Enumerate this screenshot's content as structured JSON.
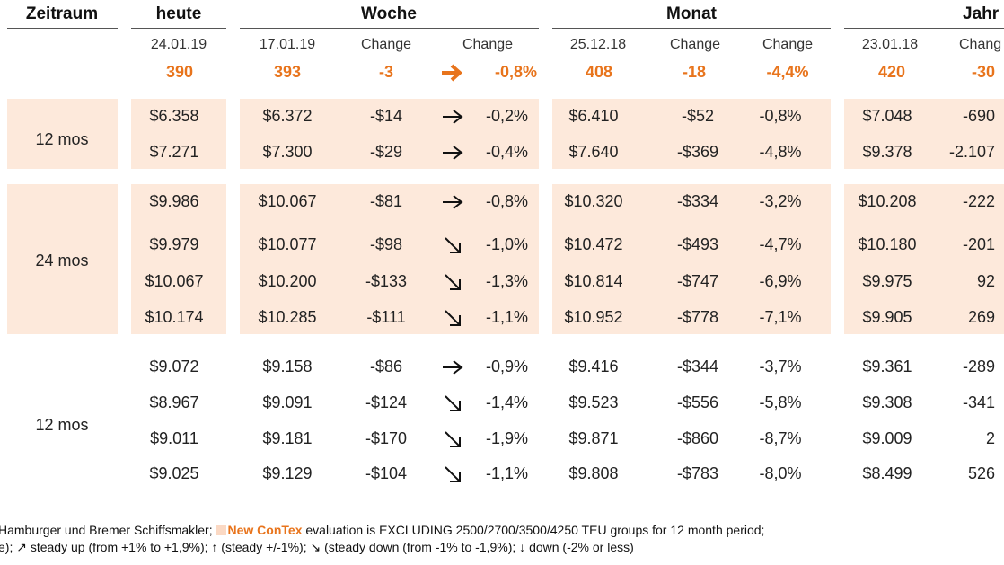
{
  "headers": {
    "zeitraum": "Zeitraum",
    "heute": "heute",
    "woche": "Woche",
    "monat": "Monat",
    "jahr": "Jahr"
  },
  "subheaders": {
    "heute_date": "24.01.19",
    "woche_date": "17.01.19",
    "woche_change1": "Change",
    "woche_change2": "Change",
    "monat_date": "25.12.18",
    "monat_change1": "Change",
    "monat_change2": "Change",
    "jahr_date": "23.01.18",
    "jahr_change1": "Chang"
  },
  "index_row": {
    "heute": "390",
    "woche": "393",
    "woche_change": "-3",
    "woche_pct": "-0,8%",
    "woche_arrow": "right-arrow-icon",
    "monat": "408",
    "monat_change": "-18",
    "monat_pct": "-4,4%",
    "jahr": "420",
    "jahr_change": "-30"
  },
  "groups": [
    {
      "label": "12 mos"
    },
    {
      "label": "24 mos"
    },
    {
      "label": "12 mos"
    }
  ],
  "rows": [
    {
      "heute": "$6.358",
      "woche": "$6.372",
      "w_chg": "-$14",
      "w_arrow": "right",
      "w_pct": "-0,2%",
      "monat": "$6.410",
      "m_chg": "-$52",
      "m_pct": "-0,8%",
      "jahr": "$7.048",
      "j_chg": "-690"
    },
    {
      "heute": "$7.271",
      "woche": "$7.300",
      "w_chg": "-$29",
      "w_arrow": "right",
      "w_pct": "-0,4%",
      "monat": "$7.640",
      "m_chg": "-$369",
      "m_pct": "-4,8%",
      "jahr": "$9.378",
      "j_chg": "-2.107"
    },
    {
      "heute": "$9.986",
      "woche": "$10.067",
      "w_chg": "-$81",
      "w_arrow": "right",
      "w_pct": "-0,8%",
      "monat": "$10.320",
      "m_chg": "-$334",
      "m_pct": "-3,2%",
      "jahr": "$10.208",
      "j_chg": "-222"
    },
    {
      "heute": "$9.979",
      "woche": "$10.077",
      "w_chg": "-$98",
      "w_arrow": "down-right",
      "w_pct": "-1,0%",
      "monat": "$10.472",
      "m_chg": "-$493",
      "m_pct": "-4,7%",
      "jahr": "$10.180",
      "j_chg": "-201"
    },
    {
      "heute": "$10.067",
      "woche": "$10.200",
      "w_chg": "-$133",
      "w_arrow": "down-right",
      "w_pct": "-1,3%",
      "monat": "$10.814",
      "m_chg": "-$747",
      "m_pct": "-6,9%",
      "jahr": "$9.975",
      "j_chg": "92"
    },
    {
      "heute": "$10.174",
      "woche": "$10.285",
      "w_chg": "-$111",
      "w_arrow": "down-right",
      "w_pct": "-1,1%",
      "monat": "$10.952",
      "m_chg": "-$778",
      "m_pct": "-7,1%",
      "jahr": "$9.905",
      "j_chg": "269"
    },
    {
      "heute": "$9.072",
      "woche": "$9.158",
      "w_chg": "-$86",
      "w_arrow": "right",
      "w_pct": "-0,9%",
      "monat": "$9.416",
      "m_chg": "-$344",
      "m_pct": "-3,7%",
      "jahr": "$9.361",
      "j_chg": "-289"
    },
    {
      "heute": "$8.967",
      "woche": "$9.091",
      "w_chg": "-$124",
      "w_arrow": "down-right",
      "w_pct": "-1,4%",
      "monat": "$9.523",
      "m_chg": "-$556",
      "m_pct": "-5,8%",
      "jahr": "$9.308",
      "j_chg": "-341"
    },
    {
      "heute": "$9.011",
      "woche": "$9.181",
      "w_chg": "-$170",
      "w_arrow": "down-right",
      "w_pct": "-1,9%",
      "monat": "$9.871",
      "m_chg": "-$860",
      "m_pct": "-8,7%",
      "jahr": "$9.009",
      "j_chg": "2"
    },
    {
      "heute": "$9.025",
      "woche": "$9.129",
      "w_chg": "-$104",
      "w_arrow": "down-right",
      "w_pct": "-1,1%",
      "monat": "$9.808",
      "m_chg": "-$783",
      "m_pct": "-8,0%",
      "jahr": "$8.499",
      "j_chg": "526"
    }
  ],
  "footer": {
    "line1_pre": "Hamburger und Bremer Schiffsmakler;",
    "line1_brand": "New ConTex",
    "line1_post": "evaluation is EXCLUDING 2500/2700/3500/4250 TEU groups for 12 month period;",
    "line2": "e); ↗ steady up (from +1% to +1,9%); ↑ (steady +/-1%); ↘ (steady down (from -1% to -1,9%); ↓ down (-2% or less)"
  },
  "colors": {
    "accent": "#e8741c",
    "band": "#fde9db",
    "text": "#222222"
  }
}
